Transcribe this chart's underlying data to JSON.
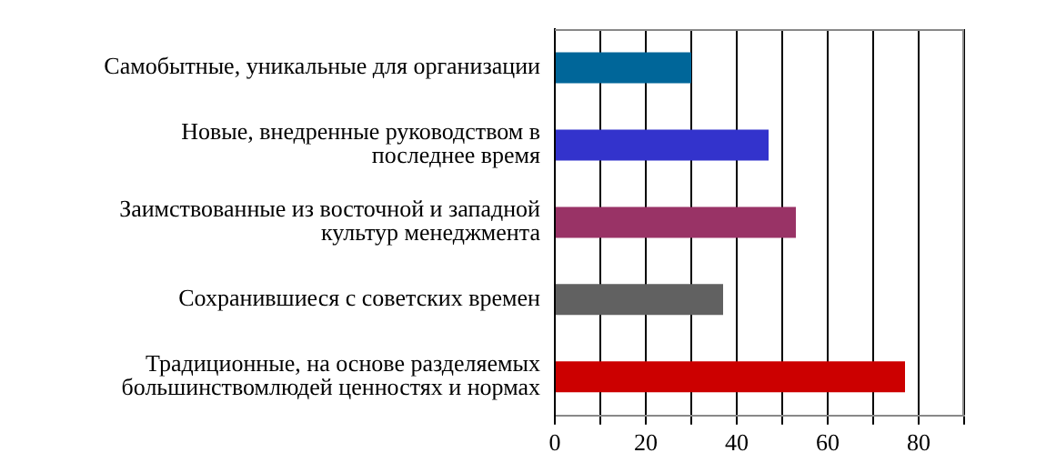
{
  "chart_data": {
    "type": "bar",
    "orientation": "horizontal",
    "categories": [
      "Самобытные, уникальные для организации",
      "Новые, внедренные руководством в последнее время",
      "Заимствованные из восточной и западной культур менеджмента",
      "Сохранившиеся с советских времен",
      "Традиционные, на основе разделяемых большинствомлюдей ценностях и нормах"
    ],
    "values": [
      30,
      47,
      53,
      37,
      77
    ],
    "colors": [
      "#006699",
      "#3333cc",
      "#993366",
      "#616161",
      "#cc0000"
    ],
    "xlim": [
      0,
      90
    ],
    "xticks": [
      0,
      {
        "value": 10,
        "label": null
      },
      20,
      {
        "value": 30,
        "label": null
      },
      40,
      {
        "value": 50,
        "label": null
      },
      60,
      {
        "value": 70,
        "label": null
      },
      80,
      {
        "value": 90,
        "label": null
      }
    ],
    "grid": "x"
  }
}
